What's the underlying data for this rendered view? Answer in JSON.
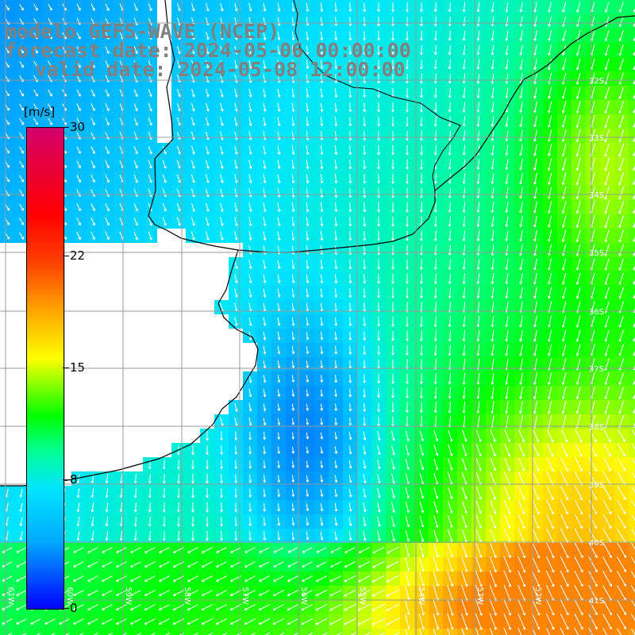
{
  "title": {
    "line1": "modelo GEFS-WAVE (NCEP)",
    "line2": "forecast date: 2024-05-06 00:00:00",
    "line3": "valid date: 2024-05-08 12:00:00"
  },
  "colorbar": {
    "unit": "[m/s]",
    "ticks": [
      {
        "label": "30",
        "value": 30
      },
      {
        "label": "22",
        "value": 22
      },
      {
        "label": "15",
        "value": 15
      },
      {
        "label": "8",
        "value": 8
      },
      {
        "label": "0",
        "value": 0
      }
    ],
    "range": [
      0,
      30
    ]
  },
  "map": {
    "lat_labels": [
      "32S",
      "33S",
      "34S",
      "35S",
      "36S",
      "37S",
      "38S",
      "39S",
      "40S",
      "41S"
    ],
    "lon_labels": [
      "61W",
      "60W",
      "59W",
      "58W",
      "57W",
      "56W",
      "55W",
      "54W",
      "53W",
      "52W"
    ],
    "colors": {
      "land": "#ffffff",
      "coast": "#000000",
      "grid": "#999999",
      "arrow": "#ffffff"
    }
  }
}
